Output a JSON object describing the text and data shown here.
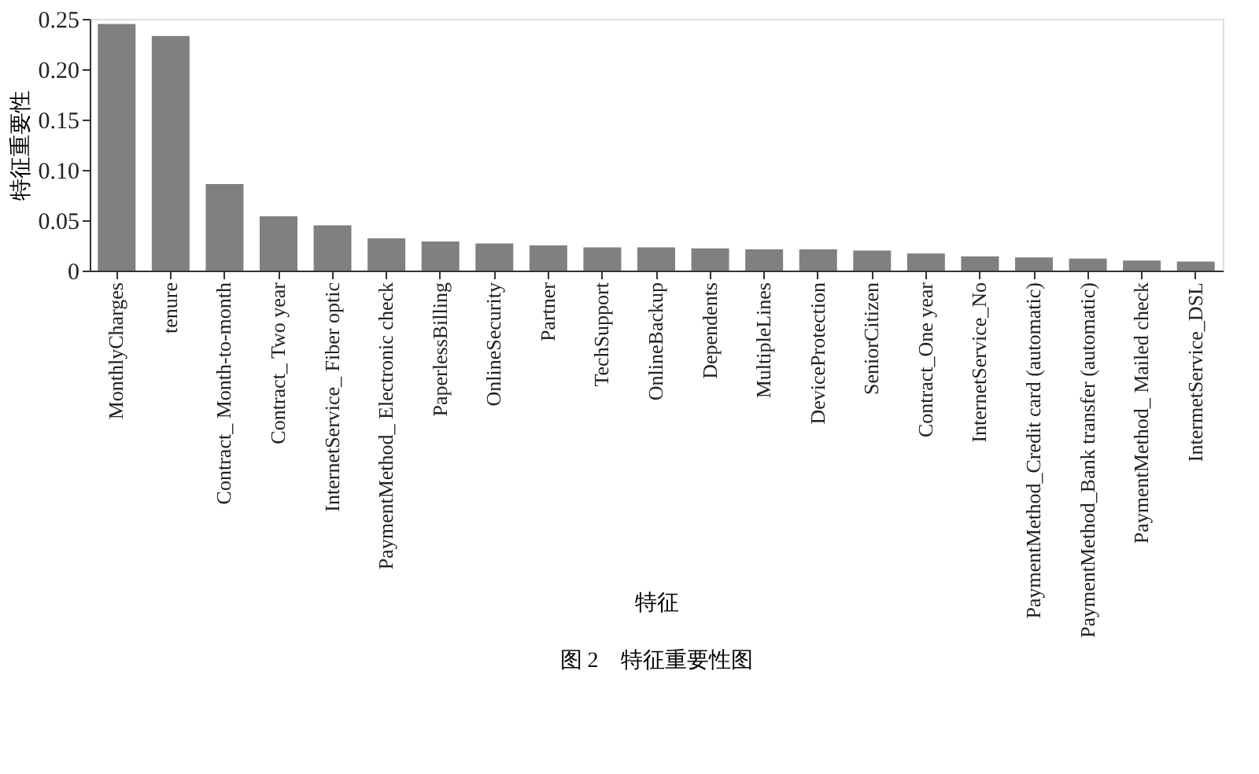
{
  "chart_data": {
    "type": "bar",
    "xlabel": "特征",
    "ylabel": "特征重要性",
    "categories": [
      "MonthlyCharges",
      "tenure",
      "Contract_ Month-to-month",
      "Contract_ Two year",
      "InternetService_ Fiber optic",
      "PaymentMethod_ Electronic check",
      "PaperlessBilling",
      "OnlineSecurity",
      "Partner",
      "TechSupport",
      "OnlineBackup",
      "Dependents",
      "MultipleLines",
      "DeviceProtection",
      "SeniorCitizen",
      "Contract_One year",
      "InternetService_No",
      "PaymentMethod_Credit card (automatic)",
      "PaymentMethod_Bank transfer (automatic)",
      "PaymentMethod_ Mailed check",
      "IntermetService_DSL"
    ],
    "values": [
      0.245,
      0.233,
      0.086,
      0.054,
      0.045,
      0.032,
      0.029,
      0.027,
      0.025,
      0.023,
      0.023,
      0.022,
      0.021,
      0.021,
      0.02,
      0.017,
      0.014,
      0.013,
      0.012,
      0.01,
      0.009
    ],
    "color": "#808080",
    "ylim": [
      0,
      0.25
    ],
    "yticks": [
      {
        "value": 0,
        "label": "0"
      },
      0.05,
      {
        "value": 0.1,
        "label": "0.10"
      },
      0.15,
      {
        "value": 0.2,
        "label": "0.20"
      },
      0.25
    ],
    "grid": false,
    "annotations": [
      "图 2　特征重要性图"
    ]
  }
}
